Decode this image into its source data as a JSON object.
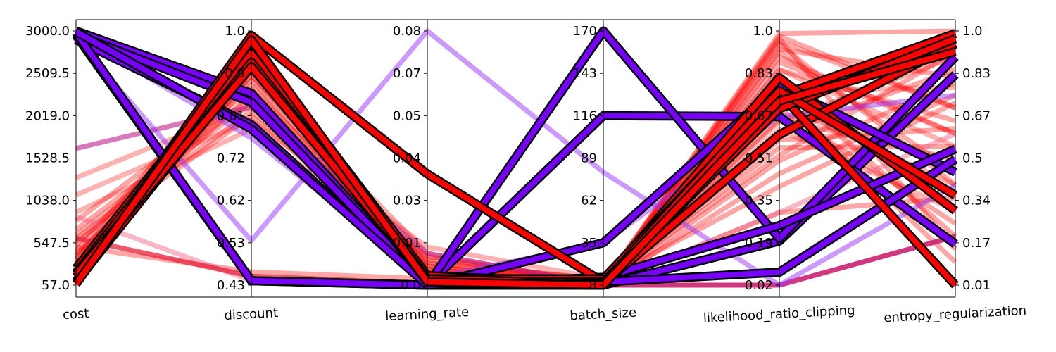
{
  "chart_data": {
    "type": "parallel_coordinates",
    "axes": [
      {
        "name": "cost",
        "ticks": [
          "3000.0",
          "2509.5",
          "2019.0",
          "1528.5",
          "1038.0",
          "547.5",
          "57.0"
        ],
        "range": [
          57.0,
          3000.0
        ]
      },
      {
        "name": "discount",
        "ticks": [
          "1.0",
          "0.9",
          "0.81",
          "0.72",
          "0.62",
          "0.53",
          "0.43"
        ],
        "range": [
          0.43,
          1.0
        ]
      },
      {
        "name": "learning_rate",
        "ticks": [
          "0.08",
          "0.07",
          "0.05",
          "0.04",
          "0.03",
          "0.01",
          "0.0"
        ],
        "range": [
          0.0,
          0.08
        ]
      },
      {
        "name": "batch_size",
        "ticks": [
          "170",
          "143",
          "116",
          "89",
          "62",
          "35",
          "8"
        ],
        "range": [
          8,
          170
        ]
      },
      {
        "name": "likelihood_ratio_clipping",
        "ticks": [
          "1.0",
          "0.83",
          "0.67",
          "0.51",
          "0.35",
          "0.19",
          "0.02"
        ],
        "range": [
          0.02,
          1.0
        ]
      },
      {
        "name": "entropy_regularization",
        "ticks": [
          "1.0",
          "0.83",
          "0.67",
          "0.5",
          "0.34",
          "0.17",
          "0.01"
        ],
        "range": [
          0.01,
          1.0
        ]
      }
    ],
    "highlighted_lines": [
      {
        "color": "#7700ff",
        "values": [
          3000,
          0.86,
          0.0,
          8,
          0.19,
          0.83
        ]
      },
      {
        "color": "#7700ff",
        "values": [
          2950,
          0.44,
          0.0,
          116,
          0.67,
          0.17
        ]
      },
      {
        "color": "#7700ff",
        "values": [
          2900,
          0.79,
          0.0,
          170,
          0.2,
          0.9
        ]
      },
      {
        "color": "#7700ff",
        "values": [
          2960,
          0.84,
          0.0,
          35,
          0.79,
          0.45
        ]
      },
      {
        "color": "#7700ff",
        "values": [
          2980,
          0.44,
          0.0,
          10,
          0.07,
          0.5
        ]
      },
      {
        "color": "#7700ff",
        "values": [
          2990,
          0.78,
          0.0,
          13,
          0.25,
          0.54
        ]
      },
      {
        "color": "#ff0000",
        "values": [
          100,
          0.99,
          0.035,
          10,
          0.75,
          0.99
        ]
      },
      {
        "color": "#ff0000",
        "values": [
          250,
          0.96,
          0.002,
          10,
          0.82,
          0.3
        ]
      },
      {
        "color": "#ff0000",
        "values": [
          150,
          0.97,
          0.003,
          9,
          0.6,
          0.95
        ]
      },
      {
        "color": "#ff0000",
        "values": [
          200,
          0.95,
          0.002,
          12,
          0.76,
          0.01
        ]
      },
      {
        "color": "#ff0000",
        "values": [
          90,
          0.93,
          0.001,
          10,
          0.7,
          0.97
        ]
      },
      {
        "color": "#ff0000",
        "values": [
          180,
          0.92,
          0.002,
          9,
          0.77,
          0.36
        ]
      },
      {
        "color": "#ff0000",
        "values": [
          70,
          0.98,
          0.001,
          8,
          0.73,
          0.92
        ]
      }
    ],
    "background_lines": [
      {
        "color": "#ff0000",
        "opacity": 0.35,
        "values": [
          500,
          0.46,
          0.002,
          8,
          0.5,
          0.8
        ]
      },
      {
        "color": "#ff0000",
        "opacity": 0.35,
        "values": [
          300,
          0.9,
          0.01,
          8,
          0.9,
          0.6
        ]
      },
      {
        "color": "#ff0000",
        "opacity": 0.35,
        "values": [
          700,
          0.85,
          0.005,
          10,
          0.95,
          0.4
        ]
      },
      {
        "color": "#ff0000",
        "opacity": 0.35,
        "values": [
          200,
          0.94,
          0.002,
          9,
          0.98,
          0.7
        ]
      },
      {
        "color": "#ff0000",
        "opacity": 0.35,
        "values": [
          400,
          0.88,
          0.003,
          8,
          0.8,
          0.2
        ]
      },
      {
        "color": "#ff0000",
        "opacity": 0.35,
        "values": [
          150,
          0.96,
          0.004,
          11,
          0.65,
          0.9
        ]
      },
      {
        "color": "#ff0000",
        "opacity": 0.35,
        "values": [
          250,
          0.91,
          0.006,
          10,
          0.55,
          0.55
        ]
      },
      {
        "color": "#ff0000",
        "opacity": 0.35,
        "values": [
          350,
          0.97,
          0.002,
          8,
          0.45,
          0.75
        ]
      },
      {
        "color": "#ff0000",
        "opacity": 0.35,
        "values": [
          100,
          0.93,
          0.001,
          9,
          0.99,
          1.0
        ]
      },
      {
        "color": "#ff0000",
        "opacity": 0.35,
        "values": [
          600,
          0.82,
          0.009,
          8,
          0.3,
          0.35
        ]
      },
      {
        "color": "#ff0000",
        "opacity": 0.35,
        "values": [
          800,
          0.87,
          0.007,
          12,
          0.7,
          0.25
        ]
      },
      {
        "color": "#ff0000",
        "opacity": 0.35,
        "values": [
          450,
          0.95,
          0.003,
          8,
          0.85,
          0.65
        ]
      },
      {
        "color": "#ff0000",
        "opacity": 0.35,
        "values": [
          120,
          0.99,
          0.002,
          8,
          0.92,
          0.45
        ]
      },
      {
        "color": "#ff0000",
        "opacity": 0.35,
        "values": [
          520,
          0.89,
          0.004,
          10,
          0.6,
          0.85
        ]
      },
      {
        "color": "#ff0000",
        "opacity": 0.35,
        "values": [
          310,
          0.92,
          0.003,
          9,
          0.75,
          0.1
        ]
      },
      {
        "color": "#ff0000",
        "opacity": 0.35,
        "values": [
          80,
          0.98,
          0.001,
          8,
          0.88,
          0.6
        ]
      },
      {
        "color": "#ff0000",
        "opacity": 0.35,
        "values": [
          640,
          0.84,
          0.008,
          11,
          0.4,
          0.72
        ]
      },
      {
        "color": "#ff0000",
        "opacity": 0.35,
        "values": [
          260,
          0.94,
          0.002,
          8,
          0.97,
          0.15
        ]
      },
      {
        "color": "#ff0000",
        "opacity": 0.35,
        "values": [
          180,
          0.9,
          0.005,
          9,
          0.66,
          0.5
        ]
      },
      {
        "color": "#ff0000",
        "opacity": 0.35,
        "values": [
          420,
          0.86,
          0.004,
          10,
          0.52,
          0.92
        ]
      },
      {
        "color": "#ff0000",
        "opacity": 0.35,
        "values": [
          90,
          0.97,
          0.002,
          8,
          0.81,
          0.3
        ]
      },
      {
        "color": "#ff0000",
        "opacity": 0.35,
        "values": [
          560,
          0.81,
          0.006,
          9,
          0.58,
          0.62
        ]
      },
      {
        "color": "#ff0000",
        "opacity": 0.35,
        "values": [
          230,
          0.95,
          0.003,
          8,
          0.93,
          0.82
        ]
      },
      {
        "color": "#ff0000",
        "opacity": 0.35,
        "values": [
          370,
          0.91,
          0.002,
          10,
          0.72,
          0.4
        ]
      },
      {
        "color": "#ff0000",
        "opacity": 0.35,
        "values": [
          140,
          0.99,
          0.001,
          8,
          0.96,
          0.7
        ]
      },
      {
        "color": "#ff0000",
        "opacity": 0.3,
        "values": [
          1100,
          0.8,
          0.012,
          12,
          0.85,
          0.55
        ]
      },
      {
        "color": "#ff0000",
        "opacity": 0.3,
        "values": [
          900,
          0.78,
          0.009,
          10,
          0.62,
          0.3
        ]
      },
      {
        "color": "#ff0000",
        "opacity": 0.3,
        "values": [
          1300,
          0.83,
          0.007,
          9,
          0.77,
          0.78
        ]
      },
      {
        "color": "#f06080",
        "opacity": 0.45,
        "values": [
          850,
          0.44,
          0.001,
          8,
          0.3,
          0.6
        ]
      },
      {
        "color": "#e8203c",
        "opacity": 0.75,
        "values": [
          600,
          0.45,
          0.0005,
          8,
          0.02,
          0.2
        ]
      },
      {
        "color": "#c0208a",
        "opacity": 0.6,
        "values": [
          1640,
          0.83,
          0.01,
          8,
          0.02,
          0.2
        ]
      },
      {
        "color": "#9933ff",
        "opacity": 0.5,
        "values": [
          2900,
          0.53,
          0.08,
          80,
          0.02,
          0.4
        ]
      },
      {
        "color": "#9933ff",
        "opacity": 0.5,
        "values": [
          2950,
          0.76,
          0.002,
          35,
          0.67,
          0.75
        ]
      }
    ]
  }
}
